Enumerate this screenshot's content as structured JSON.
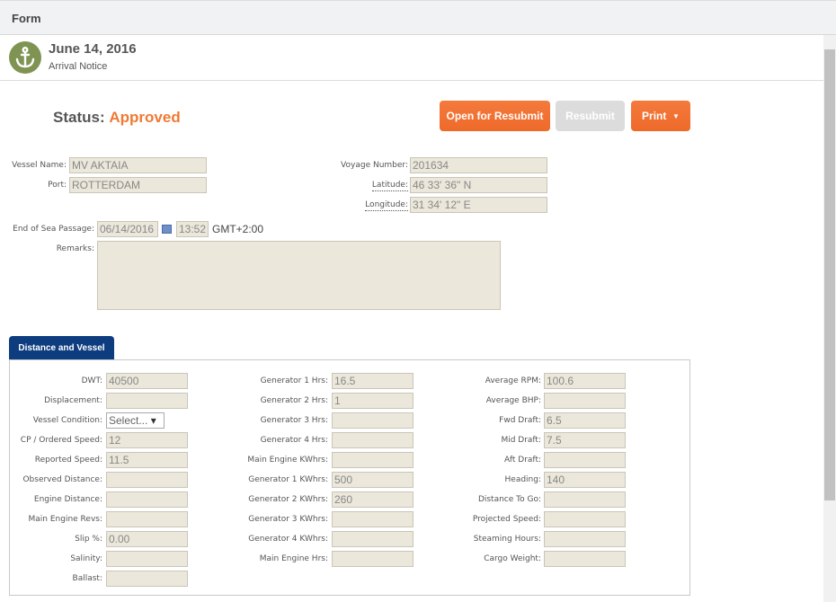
{
  "window": {
    "title": "Form"
  },
  "header": {
    "date": "June 14, 2016",
    "subtitle": "Arrival Notice",
    "icon": "anchor-icon",
    "icon_color": "#7f9453"
  },
  "status": {
    "label": "Status:",
    "value": "Approved",
    "color": "#ef7a34"
  },
  "buttons": {
    "open_resubmit": "Open for Resubmit",
    "resubmit": "Resubmit",
    "print": "Print"
  },
  "general": {
    "vessel_name": {
      "label": "Vessel Name:",
      "value": "MV AKTAIA"
    },
    "port": {
      "label": "Port:",
      "value": "ROTTERDAM"
    },
    "voyage": {
      "label": "Voyage Number:",
      "value": "201634"
    },
    "latitude": {
      "label": "Latitude:",
      "value": "46 33' 36\" N"
    },
    "longitude": {
      "label": "Longitude:",
      "value": "31 34' 12\" E"
    },
    "eosp": {
      "label": "End of Sea Passage:",
      "date": "06/14/2016",
      "time": "13:52",
      "tz": "GMT+2:00"
    },
    "remarks": {
      "label": "Remarks:",
      "value": ""
    }
  },
  "section": {
    "tab": "Distance and Vessel",
    "col1": [
      {
        "label": "DWT:",
        "value": "40500"
      },
      {
        "label": "Displacement:",
        "value": ""
      },
      {
        "label": "Vessel Condition:",
        "value": "Select...",
        "type": "select"
      },
      {
        "label": "CP / Ordered Speed:",
        "value": "12"
      },
      {
        "label": "Reported Speed:",
        "value": "11.5"
      },
      {
        "label": "Observed Distance:",
        "value": ""
      },
      {
        "label": "Engine Distance:",
        "value": ""
      },
      {
        "label": "Main Engine Revs:",
        "value": ""
      },
      {
        "label": "Slip %:",
        "value": "0.00"
      },
      {
        "label": "Salinity:",
        "value": ""
      },
      {
        "label": "Ballast:",
        "value": ""
      }
    ],
    "col2": [
      {
        "label": "Generator 1 Hrs:",
        "value": "16.5"
      },
      {
        "label": "Generator 2 Hrs:",
        "value": "1"
      },
      {
        "label": "Generator 3 Hrs:",
        "value": ""
      },
      {
        "label": "Generator 4 Hrs:",
        "value": ""
      },
      {
        "label": "Main Engine KWhrs:",
        "value": ""
      },
      {
        "label": "Generator 1 KWhrs:",
        "value": "500"
      },
      {
        "label": "Generator 2 KWhrs:",
        "value": "260"
      },
      {
        "label": "Generator 3 KWhrs:",
        "value": ""
      },
      {
        "label": "Generator 4 KWhrs:",
        "value": ""
      },
      {
        "label": "Main Engine Hrs:",
        "value": ""
      }
    ],
    "col3": [
      {
        "label": "Average RPM:",
        "value": "100.6"
      },
      {
        "label": "Average BHP:",
        "value": ""
      },
      {
        "label": "Fwd Draft:",
        "value": "6.5"
      },
      {
        "label": "Mid Draft:",
        "value": "7.5"
      },
      {
        "label": "Aft Draft:",
        "value": ""
      },
      {
        "label": "Heading:",
        "value": "140"
      },
      {
        "label": "Distance To Go:",
        "value": ""
      },
      {
        "label": "Projected Speed:",
        "value": ""
      },
      {
        "label": "Steaming Hours:",
        "value": ""
      },
      {
        "label": "Cargo Weight:",
        "value": ""
      }
    ]
  }
}
